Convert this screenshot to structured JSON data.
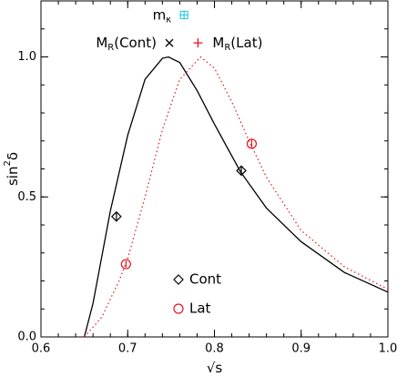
{
  "chart_data": {
    "type": "line",
    "xlabel": {
      "base": "√s"
    },
    "ylabel": {
      "base": "sin",
      "sup": "2",
      "rest": "δ"
    },
    "xlim": [
      0.6,
      1.0
    ],
    "ylim": [
      0,
      1.2
    ],
    "xticks": [
      0.6,
      0.7,
      0.8,
      0.9,
      {
        "value": 1.0,
        "label": "1.0"
      }
    ],
    "yticks": [
      {
        "value": 0,
        "label": "0.0"
      },
      0.5,
      {
        "value": 1.0,
        "label": "1.0"
      }
    ],
    "series": [
      {
        "name": "Cont",
        "color": "#000000",
        "style": "solid",
        "symbol": "diamond",
        "x": [
          0.65,
          0.66,
          0.68,
          0.7,
          0.72,
          0.74,
          0.747,
          0.76,
          0.78,
          0.8,
          0.83,
          0.86,
          0.9,
          0.95,
          1.0
        ],
        "values": [
          0,
          0.12,
          0.45,
          0.72,
          0.92,
          0.995,
          1.0,
          0.98,
          0.88,
          0.76,
          0.59,
          0.46,
          0.34,
          0.23,
          0.16
        ],
        "points": {
          "x": [
            0.687,
            0.831
          ],
          "values": [
            0.43,
            0.594
          ],
          "errors": [
            0.018,
            0.015
          ]
        }
      },
      {
        "name": "Lat",
        "color": "#e8141c",
        "style": "dotted",
        "symbol": "circle",
        "x": [
          0.65,
          0.67,
          0.69,
          0.7,
          0.72,
          0.74,
          0.76,
          0.784,
          0.8,
          0.82,
          0.84,
          0.86,
          0.9,
          0.95,
          1.0
        ],
        "values": [
          0,
          0.07,
          0.2,
          0.28,
          0.5,
          0.74,
          0.92,
          1.0,
          0.96,
          0.84,
          0.7,
          0.57,
          0.38,
          0.25,
          0.17
        ],
        "points": {
          "x": [
            0.698,
            0.843
          ],
          "values": [
            0.26,
            0.69
          ],
          "errors": [
            0.012,
            0.015
          ]
        }
      }
    ],
    "markers": [
      {
        "base": "m",
        "sub": "κ",
        "x": 0.765,
        "y": 1.15,
        "color": "#22c8e0",
        "symbol": "boxcross"
      },
      {
        "base": "M",
        "sub": "R",
        "rest": "(Cont)",
        "x": 0.748,
        "y": 1.05,
        "color": "#000000",
        "symbol": "x"
      },
      {
        "base": "M",
        "sub": "R",
        "rest": "(Lat)",
        "x": 0.781,
        "y": 1.05,
        "color": "#e8141c",
        "symbol": "plus"
      }
    ]
  }
}
